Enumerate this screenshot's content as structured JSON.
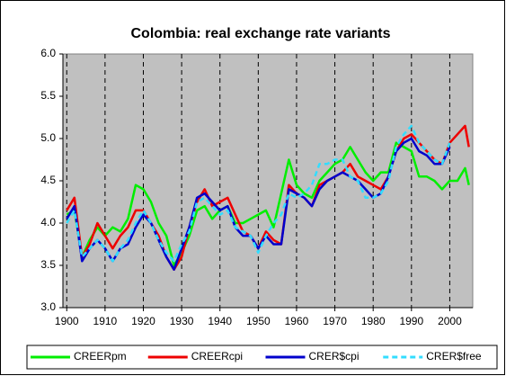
{
  "chart_data": {
    "type": "line",
    "title": "Colombia: real exchange rate variants",
    "x": [
      1900,
      1902,
      1904,
      1906,
      1908,
      1910,
      1912,
      1914,
      1916,
      1918,
      1920,
      1922,
      1924,
      1926,
      1928,
      1930,
      1932,
      1934,
      1936,
      1938,
      1940,
      1942,
      1944,
      1946,
      1948,
      1950,
      1952,
      1954,
      1956,
      1958,
      1960,
      1962,
      1964,
      1966,
      1968,
      1970,
      1972,
      1974,
      1976,
      1978,
      1980,
      1982,
      1984,
      1986,
      1988,
      1990,
      1992,
      1994,
      1996,
      1998,
      2000,
      2002,
      2004,
      2005
    ],
    "series": [
      {
        "name": "CREERpm",
        "color": "#00ee00",
        "dashed": false,
        "values": [
          4.1,
          4.15,
          3.6,
          3.8,
          3.95,
          3.85,
          3.95,
          3.9,
          4.05,
          4.45,
          4.4,
          4.25,
          4.0,
          3.85,
          3.5,
          3.65,
          3.85,
          4.15,
          4.2,
          4.05,
          4.15,
          4.2,
          4.0,
          4.0,
          4.05,
          4.1,
          4.15,
          3.95,
          4.35,
          4.75,
          4.45,
          4.35,
          4.3,
          4.5,
          4.6,
          4.7,
          4.75,
          4.9,
          4.75,
          4.6,
          4.5,
          4.6,
          4.6,
          4.95,
          4.9,
          4.85,
          4.55,
          4.55,
          4.5,
          4.4,
          4.5,
          4.5,
          4.65,
          4.45
        ]
      },
      {
        "name": "CREERcpi",
        "color": "#ee0000",
        "dashed": false,
        "values": [
          4.15,
          4.3,
          3.6,
          3.75,
          4.0,
          3.85,
          3.7,
          3.85,
          3.95,
          4.15,
          4.15,
          4.0,
          3.85,
          3.6,
          3.45,
          3.6,
          3.95,
          4.25,
          4.4,
          4.2,
          4.25,
          4.3,
          4.1,
          3.9,
          3.85,
          3.7,
          3.9,
          3.8,
          3.75,
          4.45,
          4.35,
          4.3,
          4.2,
          4.45,
          4.5,
          4.55,
          4.6,
          4.7,
          4.55,
          4.5,
          4.45,
          4.4,
          4.55,
          4.85,
          5.0,
          5.05,
          4.95,
          4.85,
          4.75,
          4.7,
          4.95,
          5.05,
          5.15,
          4.9
        ]
      },
      {
        "name": "CRER$cpi",
        "color": "#0000cc",
        "dashed": false,
        "values": [
          4.05,
          4.2,
          3.55,
          3.7,
          3.8,
          3.7,
          3.55,
          3.7,
          3.75,
          3.95,
          4.1,
          4.0,
          3.8,
          3.6,
          3.45,
          3.7,
          3.95,
          4.3,
          4.35,
          4.25,
          4.15,
          4.2,
          3.95,
          3.85,
          3.85,
          3.7,
          3.85,
          3.75,
          3.75,
          4.4,
          4.35,
          4.3,
          4.2,
          4.4,
          4.5,
          4.55,
          4.6,
          4.55,
          4.5,
          4.4,
          4.3,
          4.35,
          4.55,
          4.85,
          4.95,
          5.0,
          4.85,
          4.8,
          4.7,
          4.7,
          4.9,
          null,
          null,
          null
        ]
      },
      {
        "name": "CRER$free",
        "color": "#33ddff",
        "dashed": true,
        "values": [
          4.0,
          4.15,
          3.6,
          3.7,
          3.8,
          3.7,
          3.55,
          3.7,
          3.8,
          4.0,
          4.15,
          4.0,
          3.8,
          3.65,
          3.55,
          3.75,
          3.9,
          4.25,
          4.3,
          4.2,
          4.1,
          4.15,
          3.95,
          3.9,
          3.85,
          3.65,
          3.85,
          4.0,
          4.1,
          4.35,
          4.3,
          4.35,
          4.45,
          4.7,
          4.7,
          4.75,
          4.75,
          4.55,
          4.5,
          4.3,
          4.3,
          4.35,
          4.5,
          4.9,
          5.05,
          5.15,
          4.95,
          4.85,
          4.75,
          4.7,
          4.95,
          null,
          null,
          null
        ]
      }
    ],
    "xlim": [
      1899,
      2006
    ],
    "xticks": [
      1900,
      1910,
      1920,
      1930,
      1940,
      1950,
      1960,
      1970,
      1980,
      1990,
      2000
    ],
    "ylim": [
      3,
      6
    ],
    "yticks": [
      {
        "value": 3,
        "label": "3.0"
      },
      {
        "value": 3.5,
        "label": "3.5"
      },
      {
        "value": 4,
        "label": "4.0"
      },
      {
        "value": 4.5,
        "label": "4.5"
      },
      {
        "value": 5,
        "label": "5.0"
      },
      {
        "value": 5.5,
        "label": "5.5"
      },
      {
        "value": 6,
        "label": "6.0"
      }
    ],
    "grid": "x",
    "legend": "bottom"
  }
}
